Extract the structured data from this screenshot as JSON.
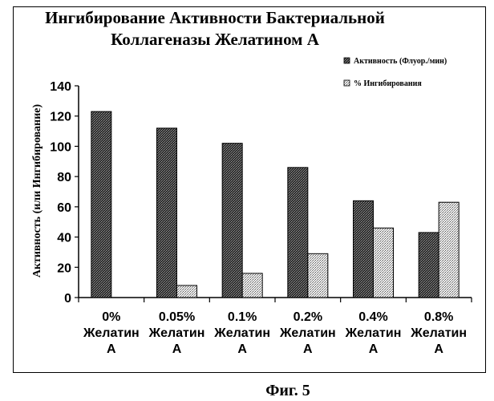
{
  "chart_data": {
    "type": "bar",
    "title_lines": [
      "Ингибирование Активности Бактериальной",
      "Коллагеназы Желатином А"
    ],
    "ylabel": "Активность (или Ингибирование)",
    "ylim": [
      0,
      140
    ],
    "yticks": [
      0,
      20,
      40,
      60,
      80,
      100,
      120,
      140
    ],
    "categories": [
      [
        "0%",
        "Желатин",
        "A"
      ],
      [
        "0.05%",
        "Желатин",
        "A"
      ],
      [
        "0.1%",
        "Желатин",
        "A"
      ],
      [
        "0.2%",
        "Желатин",
        "A"
      ],
      [
        "0.4%",
        "Желатин",
        "A"
      ],
      [
        "0.8%",
        "Желатин",
        "A"
      ]
    ],
    "series": [
      {
        "name": "Активность (Флуор./мин)",
        "values": [
          123,
          112,
          102,
          86,
          64,
          43
        ],
        "color": "#444444"
      },
      {
        "name": "% Ингибирования",
        "values": [
          0,
          8,
          16,
          29,
          46,
          63
        ],
        "color": "#dddddd"
      }
    ],
    "legend_position": "top-right",
    "grid": false
  },
  "caption": "Фиг. 5"
}
